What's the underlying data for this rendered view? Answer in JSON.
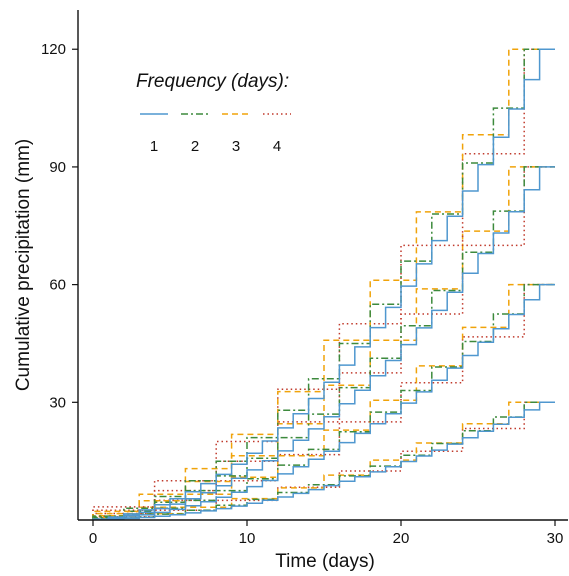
{
  "chart_data": {
    "type": "line",
    "title": "",
    "xlabel": "Time (days)",
    "ylabel": "Cumulative precipitation (mm)",
    "xlim": [
      0,
      30
    ],
    "ylim": [
      0,
      130
    ],
    "x_ticks": [
      0,
      10,
      20,
      30
    ],
    "y_ticks": [
      30,
      60,
      90,
      120
    ],
    "grid": false,
    "line_shape": "step",
    "legend": {
      "title": "Frequency (days):",
      "placement": "top-left",
      "entries": [
        "1",
        "2",
        "3",
        "4"
      ]
    },
    "series_styles": [
      {
        "frequency": "1",
        "color": "#4f97cf",
        "dash": "solid"
      },
      {
        "frequency": "2",
        "color": "#3d8a3d",
        "dash": "dash-dot"
      },
      {
        "frequency": "3",
        "color": "#f0a30a",
        "dash": "dashed"
      },
      {
        "frequency": "4",
        "color": "#c0392b",
        "dash": "dotted"
      }
    ],
    "groups": [
      {
        "total": 30,
        "x_end": 30
      },
      {
        "total": 60,
        "x_end": 30
      },
      {
        "total": 90,
        "x_end": 30
      },
      {
        "total": 120,
        "x_end": 30
      }
    ],
    "series": [
      {
        "name": "1",
        "frequency": 1,
        "total": 30
      },
      {
        "name": "2",
        "frequency": 2,
        "total": 30
      },
      {
        "name": "3",
        "frequency": 3,
        "total": 30
      },
      {
        "name": "4",
        "frequency": 4,
        "total": 30
      },
      {
        "name": "1",
        "frequency": 1,
        "total": 60
      },
      {
        "name": "2",
        "frequency": 2,
        "total": 60
      },
      {
        "name": "3",
        "frequency": 3,
        "total": 60
      },
      {
        "name": "4",
        "frequency": 4,
        "total": 60
      },
      {
        "name": "1",
        "frequency": 1,
        "total": 90
      },
      {
        "name": "2",
        "frequency": 2,
        "total": 90
      },
      {
        "name": "3",
        "frequency": 3,
        "total": 90
      },
      {
        "name": "4",
        "frequency": 4,
        "total": 90
      },
      {
        "name": "1",
        "frequency": 1,
        "total": 120
      },
      {
        "name": "2",
        "frequency": 2,
        "total": 120
      },
      {
        "name": "3",
        "frequency": 3,
        "total": 120
      },
      {
        "name": "4",
        "frequency": 4,
        "total": 120
      }
    ]
  }
}
